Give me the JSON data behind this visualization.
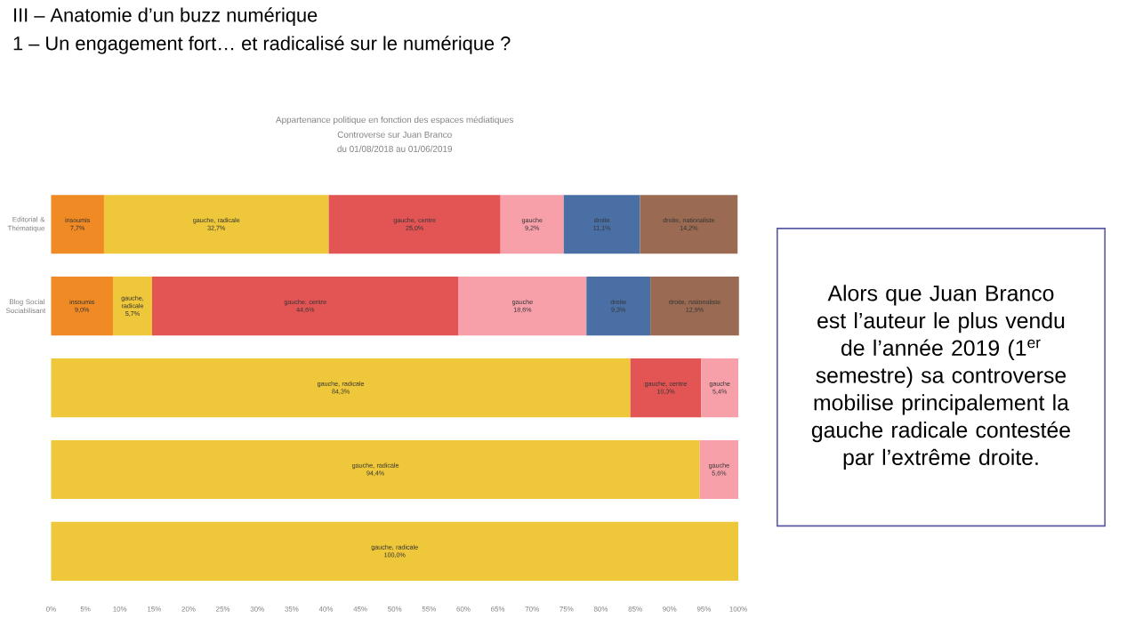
{
  "chart_data": {
    "type": "bar",
    "orientation": "horizontal",
    "stacked": true,
    "title": "III – Anatomie d’un buzz numérique",
    "subtitle": "1 – Un engagement fort… et radicalisé sur le numérique ?",
    "annotations": [
      "Appartenance politique en fonction des espaces médiatiques",
      "Controverse sur Juan Branco",
      "du 01/08/2018 au 01/06/2019",
      "Alors que Juan Branco est l’auteur le plus vendu de l’année 2019 (1$^{er}$ semestre) sa controverse mobilise principalement la gauche radicale contestée par l’extrême droite."
    ],
    "categories": [
      "Editorial & Thématique",
      "Blog Social Sociabilisant",
      null,
      null,
      null
    ],
    "xlim": [
      0,
      100
    ],
    "xticks": [
      {
        "value": 0,
        "label": "0%"
      },
      {
        "value": 5,
        "label": "5%"
      },
      {
        "value": 10,
        "label": "10%"
      },
      {
        "value": 15,
        "label": "15%"
      },
      {
        "value": 20,
        "label": "20%"
      },
      {
        "value": 25,
        "label": "25%"
      },
      {
        "value": 30,
        "label": "30%"
      },
      {
        "value": 35,
        "label": "35%"
      },
      {
        "value": 40,
        "label": "40%"
      },
      {
        "value": 45,
        "label": "45%"
      },
      {
        "value": 50,
        "label": "50%"
      },
      {
        "value": 55,
        "label": "55%"
      },
      {
        "value": 60,
        "label": "60%"
      },
      {
        "value": 65,
        "label": "65%"
      },
      {
        "value": 70,
        "label": "70%"
      },
      {
        "value": 75,
        "label": "75%"
      },
      {
        "value": 80,
        "label": "80%"
      },
      {
        "value": 85,
        "label": "85%"
      },
      {
        "value": 90,
        "label": "90%"
      },
      {
        "value": 95,
        "label": "95%"
      },
      {
        "value": 100,
        "label": "100%"
      }
    ],
    "series": [
      {
        "name": "insoumis",
        "color": "#f08a24",
        "values": [
          7.7,
          9.0,
          null,
          null,
          null
        ],
        "value_labels": [
          "7,7%",
          "9,0%",
          null,
          null,
          null
        ]
      },
      {
        "name": "gauche, radicale",
        "color": "#eec73a",
        "values": [
          32.7,
          5.7,
          84.3,
          94.4,
          100
        ],
        "value_labels": [
          "32,7%",
          "5,7%",
          "84,3%",
          "94,4%",
          "100,0%"
        ]
      },
      {
        "name": "gauche, centre",
        "color": "#e35555",
        "values": [
          25.0,
          44.6,
          10.3,
          null,
          null
        ],
        "value_labels": [
          "25,0%",
          "44,6%",
          "10,3%",
          null,
          null
        ]
      },
      {
        "name": "gauche",
        "color": "#f7a0aa",
        "values": [
          9.2,
          18.6,
          5.4,
          5.6,
          null
        ],
        "value_labels": [
          "9,2%",
          "18,6%",
          "5,4%",
          "5,6%",
          null
        ]
      },
      {
        "name": "droite",
        "color": "#4a6fa5",
        "values": [
          11.1,
          9.3,
          null,
          null,
          null
        ],
        "value_labels": [
          "11,1%",
          "9,3%",
          null,
          null,
          null
        ]
      },
      {
        "name": "droite, nationaliste",
        "color": "#9a6b52",
        "values": [
          14.2,
          12.9,
          null,
          null,
          null
        ],
        "value_labels": [
          "14,2%",
          "12,9%",
          null,
          null,
          null
        ]
      }
    ]
  }
}
